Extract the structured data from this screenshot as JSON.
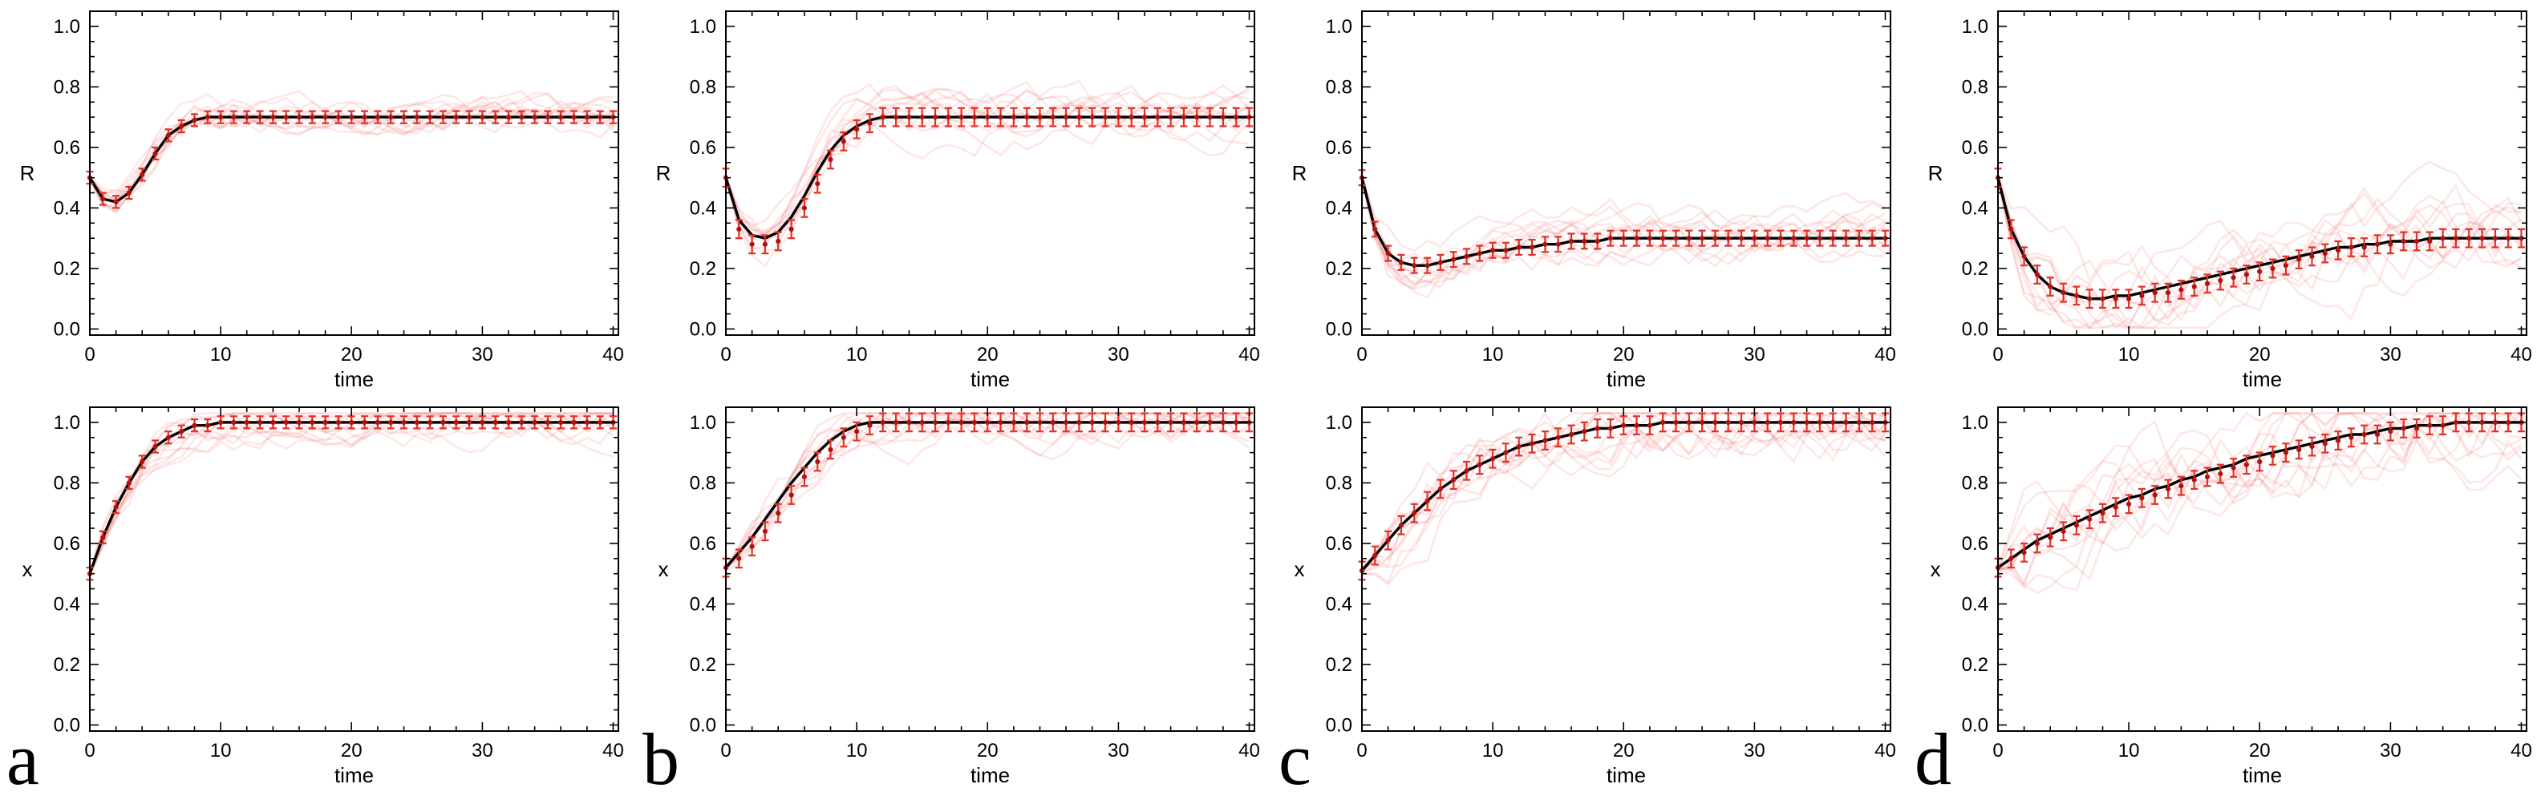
{
  "page": {
    "background": "#ffffff"
  },
  "figure": {
    "panels": [
      {
        "label": "a"
      },
      {
        "label": "b"
      },
      {
        "label": "c"
      },
      {
        "label": "d"
      }
    ]
  },
  "chart_data": {
    "type": "line",
    "layout": "2 rows x 4 columns; each column (a-d) has top plot R(t) and bottom plot x(t)",
    "legend": "none",
    "grid": false,
    "frame": true,
    "xlabel": "time",
    "xlim": [
      0,
      40
    ],
    "ylim": [
      0,
      1.05
    ],
    "xticks": [
      0,
      10,
      20,
      30,
      40
    ],
    "xtick_labels": [
      "0",
      "10",
      "20",
      "30",
      "40"
    ],
    "yticks": [
      0,
      0.2,
      0.4,
      0.6,
      0.8,
      1.0
    ],
    "ytick_labels": [
      "0.0",
      "0.2",
      "0.4",
      "0.6",
      "0.8",
      "1.0"
    ],
    "colors": {
      "theory": "#000000",
      "points": "#b01212",
      "errorbars": "#e03127",
      "trajectories": "#f46a6a",
      "frame": "#000000"
    },
    "t": [
      0,
      1,
      2,
      3,
      4,
      5,
      6,
      7,
      8,
      9,
      10,
      11,
      12,
      13,
      14,
      15,
      16,
      17,
      18,
      19,
      20,
      21,
      22,
      23,
      24,
      25,
      26,
      27,
      28,
      29,
      30,
      31,
      32,
      33,
      34,
      35,
      36,
      37,
      38,
      39,
      40
    ],
    "charts": [
      {
        "panel": "a",
        "ylabel": "R",
        "err": 0.02,
        "spread": 0.025,
        "theory": [
          0.5,
          0.43,
          0.42,
          0.45,
          0.51,
          0.58,
          0.64,
          0.67,
          0.69,
          0.7,
          0.7,
          0.7,
          0.7,
          0.7,
          0.7,
          0.7,
          0.7,
          0.7,
          0.7,
          0.7,
          0.7,
          0.7,
          0.7,
          0.7,
          0.7,
          0.7,
          0.7,
          0.7,
          0.7,
          0.7,
          0.7,
          0.7,
          0.7,
          0.7,
          0.7,
          0.7,
          0.7,
          0.7,
          0.7,
          0.7,
          0.7
        ],
        "points": null
      },
      {
        "panel": "a",
        "ylabel": "x",
        "err": 0.02,
        "spread": 0.03,
        "theory": [
          0.5,
          0.62,
          0.72,
          0.8,
          0.87,
          0.92,
          0.95,
          0.97,
          0.99,
          0.99,
          1.0,
          1.0,
          1.0,
          1.0,
          1.0,
          1.0,
          1.0,
          1.0,
          1.0,
          1.0,
          1.0,
          1.0,
          1.0,
          1.0,
          1.0,
          1.0,
          1.0,
          1.0,
          1.0,
          1.0,
          1.0,
          1.0,
          1.0,
          1.0,
          1.0,
          1.0,
          1.0,
          1.0,
          1.0,
          1.0,
          1.0
        ],
        "points": null
      },
      {
        "panel": "b",
        "ylabel": "R",
        "err": 0.03,
        "spread": 0.035,
        "theory": [
          0.5,
          0.36,
          0.31,
          0.3,
          0.32,
          0.37,
          0.44,
          0.52,
          0.59,
          0.64,
          0.67,
          0.69,
          0.7,
          0.7,
          0.7,
          0.7,
          0.7,
          0.7,
          0.7,
          0.7,
          0.7,
          0.7,
          0.7,
          0.7,
          0.7,
          0.7,
          0.7,
          0.7,
          0.7,
          0.7,
          0.7,
          0.7,
          0.7,
          0.7,
          0.7,
          0.7,
          0.7,
          0.7,
          0.7,
          0.7,
          0.7
        ],
        "points": [
          0.5,
          0.33,
          0.28,
          0.28,
          0.29,
          0.33,
          0.4,
          0.48,
          0.56,
          0.62,
          0.66,
          0.68,
          0.7,
          0.7,
          0.7,
          0.7,
          0.7,
          0.7,
          0.7,
          0.7,
          0.7,
          0.7,
          0.7,
          0.7,
          0.7,
          0.7,
          0.7,
          0.7,
          0.7,
          0.7,
          0.7,
          0.7,
          0.7,
          0.7,
          0.7,
          0.7,
          0.7,
          0.7,
          0.7,
          0.7,
          0.7
        ]
      },
      {
        "panel": "b",
        "ylabel": "x",
        "err": 0.03,
        "spread": 0.035,
        "theory": [
          0.52,
          0.57,
          0.62,
          0.68,
          0.74,
          0.8,
          0.85,
          0.9,
          0.94,
          0.97,
          0.99,
          1.0,
          1.0,
          1.0,
          1.0,
          1.0,
          1.0,
          1.0,
          1.0,
          1.0,
          1.0,
          1.0,
          1.0,
          1.0,
          1.0,
          1.0,
          1.0,
          1.0,
          1.0,
          1.0,
          1.0,
          1.0,
          1.0,
          1.0,
          1.0,
          1.0,
          1.0,
          1.0,
          1.0,
          1.0,
          1.0
        ],
        "points": [
          0.52,
          0.55,
          0.59,
          0.64,
          0.7,
          0.76,
          0.82,
          0.87,
          0.91,
          0.95,
          0.97,
          0.99,
          1.0,
          1.0,
          1.0,
          1.0,
          1.0,
          1.0,
          1.0,
          1.0,
          1.0,
          1.0,
          1.0,
          1.0,
          1.0,
          1.0,
          1.0,
          1.0,
          1.0,
          1.0,
          1.0,
          1.0,
          1.0,
          1.0,
          1.0,
          1.0,
          1.0,
          1.0,
          1.0,
          1.0,
          1.0
        ]
      },
      {
        "panel": "c",
        "ylabel": "R",
        "err": 0.025,
        "spread": 0.035,
        "theory": [
          0.5,
          0.33,
          0.25,
          0.22,
          0.21,
          0.21,
          0.22,
          0.23,
          0.24,
          0.25,
          0.26,
          0.26,
          0.27,
          0.27,
          0.28,
          0.28,
          0.29,
          0.29,
          0.29,
          0.3,
          0.3,
          0.3,
          0.3,
          0.3,
          0.3,
          0.3,
          0.3,
          0.3,
          0.3,
          0.3,
          0.3,
          0.3,
          0.3,
          0.3,
          0.3,
          0.3,
          0.3,
          0.3,
          0.3,
          0.3,
          0.3
        ],
        "points": null
      },
      {
        "panel": "c",
        "ylabel": "x",
        "err": 0.03,
        "spread": 0.05,
        "theory": [
          0.51,
          0.56,
          0.61,
          0.66,
          0.7,
          0.74,
          0.78,
          0.81,
          0.84,
          0.86,
          0.88,
          0.9,
          0.92,
          0.93,
          0.94,
          0.95,
          0.96,
          0.97,
          0.98,
          0.98,
          0.99,
          0.99,
          0.99,
          1.0,
          1.0,
          1.0,
          1.0,
          1.0,
          1.0,
          1.0,
          1.0,
          1.0,
          1.0,
          1.0,
          1.0,
          1.0,
          1.0,
          1.0,
          1.0,
          1.0,
          1.0
        ],
        "points": null
      },
      {
        "panel": "d",
        "ylabel": "R",
        "err": 0.03,
        "spread": 0.06,
        "theory": [
          0.5,
          0.33,
          0.24,
          0.18,
          0.14,
          0.12,
          0.11,
          0.1,
          0.1,
          0.11,
          0.11,
          0.12,
          0.13,
          0.14,
          0.15,
          0.16,
          0.17,
          0.18,
          0.19,
          0.2,
          0.21,
          0.22,
          0.23,
          0.24,
          0.25,
          0.26,
          0.27,
          0.27,
          0.28,
          0.28,
          0.29,
          0.29,
          0.29,
          0.3,
          0.3,
          0.3,
          0.3,
          0.3,
          0.3,
          0.3,
          0.3
        ],
        "points": [
          0.5,
          0.33,
          0.24,
          0.18,
          0.14,
          0.12,
          0.11,
          0.1,
          0.1,
          0.1,
          0.1,
          0.11,
          0.12,
          0.12,
          0.13,
          0.14,
          0.15,
          0.16,
          0.17,
          0.18,
          0.19,
          0.2,
          0.21,
          0.23,
          0.24,
          0.25,
          0.26,
          0.27,
          0.27,
          0.28,
          0.28,
          0.29,
          0.29,
          0.29,
          0.3,
          0.3,
          0.3,
          0.3,
          0.3,
          0.3,
          0.3
        ]
      },
      {
        "panel": "d",
        "ylabel": "x",
        "err": 0.03,
        "spread": 0.07,
        "theory": [
          0.52,
          0.55,
          0.58,
          0.61,
          0.63,
          0.65,
          0.67,
          0.69,
          0.71,
          0.73,
          0.75,
          0.76,
          0.78,
          0.79,
          0.81,
          0.82,
          0.84,
          0.85,
          0.86,
          0.88,
          0.89,
          0.9,
          0.91,
          0.92,
          0.93,
          0.94,
          0.95,
          0.96,
          0.96,
          0.97,
          0.98,
          0.98,
          0.99,
          0.99,
          0.99,
          1.0,
          1.0,
          1.0,
          1.0,
          1.0,
          1.0
        ],
        "points": [
          0.52,
          0.55,
          0.57,
          0.6,
          0.62,
          0.64,
          0.66,
          0.68,
          0.7,
          0.72,
          0.73,
          0.75,
          0.76,
          0.78,
          0.79,
          0.81,
          0.82,
          0.83,
          0.85,
          0.86,
          0.87,
          0.89,
          0.9,
          0.91,
          0.92,
          0.93,
          0.94,
          0.95,
          0.96,
          0.96,
          0.97,
          0.98,
          0.98,
          0.99,
          0.99,
          1.0,
          1.0,
          1.0,
          1.0,
          1.0,
          1.0
        ]
      }
    ]
  }
}
